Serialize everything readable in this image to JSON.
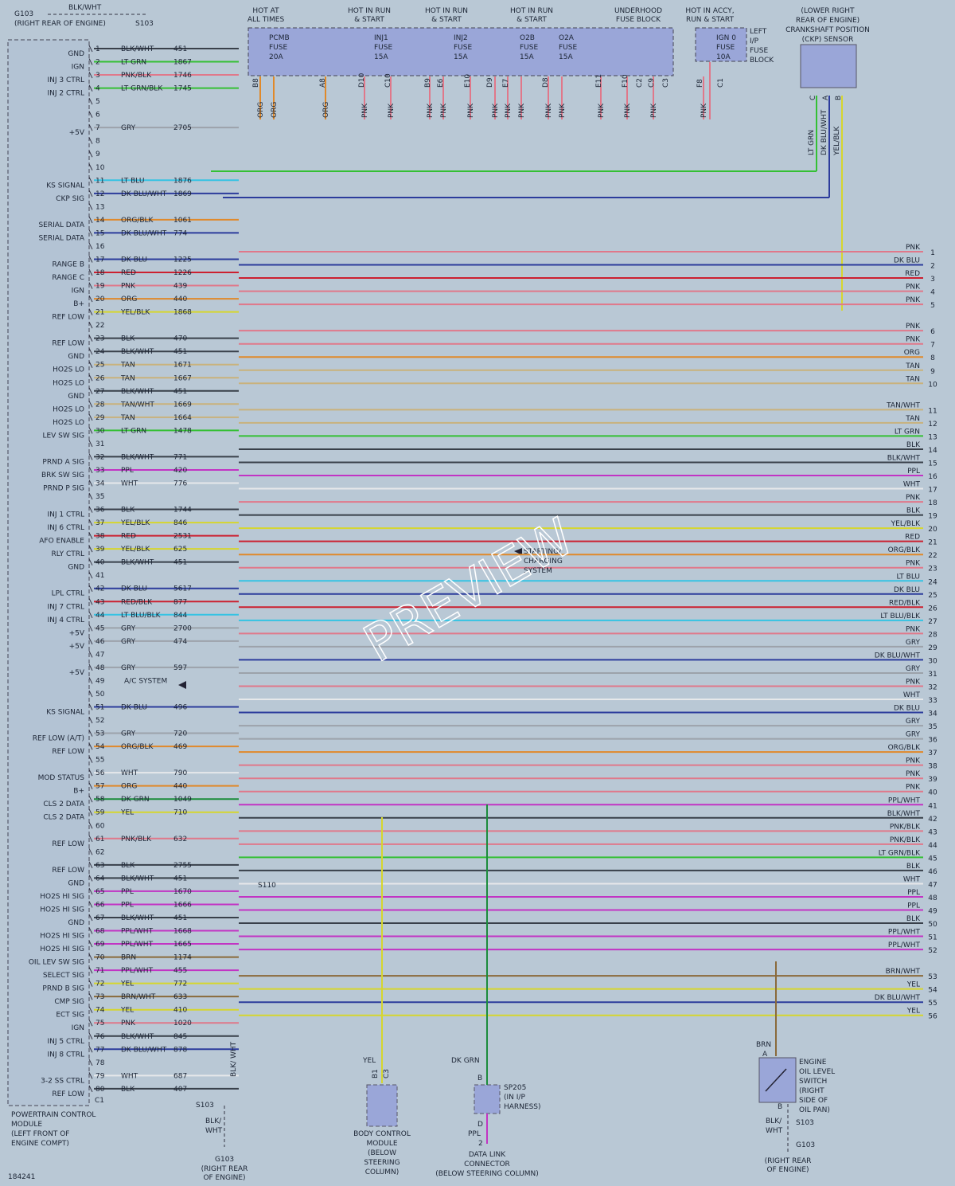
{
  "top_ground": {
    "ground": "G103",
    "note": "(RIGHT REAR OF ENGINE)",
    "wire": "BLK/WHT",
    "splice": "S103"
  },
  "supply": {
    "headers": [
      [
        "HOT AT",
        "ALL TIMES"
      ],
      [
        "HOT IN RUN",
        "& START"
      ],
      [
        "HOT IN RUN",
        "& START"
      ],
      [
        "HOT IN RUN",
        "& START"
      ],
      [
        "UNDERHOOD",
        "FUSE BLOCK"
      ],
      [
        "HOT IN ACCY,",
        "RUN & START"
      ]
    ],
    "fuses": [
      [
        "PCMB",
        "FUSE",
        "20A"
      ],
      [
        "INJ1",
        "FUSE",
        "15A"
      ],
      [
        "INJ2",
        "FUSE",
        "15A"
      ],
      [
        "O2B",
        "FUSE",
        "15A"
      ],
      [
        "O2A",
        "FUSE",
        "15A"
      ],
      [
        "IGN 0",
        "FUSE",
        "10A"
      ]
    ],
    "ip_block": [
      "LEFT",
      "I/P",
      "FUSE",
      "BLOCK"
    ],
    "terminals": [
      "B8",
      "A8",
      "D10",
      "C10",
      "B9",
      "E6",
      "E10",
      "D9",
      "E7",
      "D8",
      "E11",
      "F10",
      "C2",
      "C9",
      "C3",
      "F8",
      "C1"
    ],
    "wire_colors": [
      "ORG",
      "ORG",
      "ORG",
      "PNK",
      "PNK",
      "PNK",
      "PNK",
      "PNK",
      "PNK",
      "PNK",
      "PNK",
      "PNK",
      "PNK",
      "PNK",
      "PNK",
      "PNK",
      "PNK"
    ]
  },
  "ckp": {
    "lines": [
      "(LOWER RIGHT",
      "REAR OF ENGINE)",
      "CRANKSHAFT POSITION",
      "(CKP) SENSOR"
    ],
    "terminals": [
      "C",
      "A",
      "B"
    ],
    "wires": [
      "LT GRN",
      "DK BLU/WHT",
      "YEL/BLK"
    ]
  },
  "pcm": {
    "pins": [
      {
        "num": 1,
        "func": "GND",
        "color": "BLK/WHT",
        "circuit": 451
      },
      {
        "num": 2,
        "func": "IGN",
        "color": "LT GRN",
        "circuit": 1867
      },
      {
        "num": 3,
        "func": "INJ 3 CTRL",
        "color": "PNK/BLK",
        "circuit": 1746
      },
      {
        "num": 4,
        "func": "INJ 2 CTRL",
        "color": "LT GRN/BLK",
        "circuit": 1745
      },
      {
        "num": 5
      },
      {
        "num": 6
      },
      {
        "num": 7,
        "func": "+5V",
        "color": "GRY",
        "circuit": 2705
      },
      {
        "num": 8
      },
      {
        "num": 9
      },
      {
        "num": 10
      },
      {
        "num": 11,
        "func": "KS SIGNAL",
        "color": "LT BLU",
        "circuit": 1876
      },
      {
        "num": 12,
        "func": "CKP SIG",
        "color": "DK BLU/WHT",
        "circuit": 1869
      },
      {
        "num": 13
      },
      {
        "num": 14,
        "func": "SERIAL DATA",
        "color": "ORG/BLK",
        "circuit": 1061
      },
      {
        "num": 15,
        "func": "SERIAL DATA",
        "color": "DK BLU/WHT",
        "circuit": 774
      },
      {
        "num": 16
      },
      {
        "num": 17,
        "func": "RANGE B",
        "color": "DK BLU",
        "circuit": 1225
      },
      {
        "num": 18,
        "func": "RANGE C",
        "color": "RED",
        "circuit": 1226
      },
      {
        "num": 19,
        "func": "IGN",
        "color": "PNK",
        "circuit": 439
      },
      {
        "num": 20,
        "func": "B+",
        "color": "ORG",
        "circuit": 440
      },
      {
        "num": 21,
        "func": "REF LOW",
        "color": "YEL/BLK",
        "circuit": 1868
      },
      {
        "num": 22
      },
      {
        "num": 23,
        "func": "REF LOW",
        "color": "BLK",
        "circuit": 470
      },
      {
        "num": 24,
        "func": "GND",
        "color": "BLK/WHT",
        "circuit": 451
      },
      {
        "num": 25,
        "func": "HO2S LO",
        "color": "TAN",
        "circuit": 1671
      },
      {
        "num": 26,
        "func": "HO2S LO",
        "color": "TAN",
        "circuit": 1667
      },
      {
        "num": 27,
        "func": "GND",
        "color": "BLK/WHT",
        "circuit": 451
      },
      {
        "num": 28,
        "func": "HO2S LO",
        "color": "TAN/WHT",
        "circuit": 1669
      },
      {
        "num": 29,
        "func": "HO2S LO",
        "color": "TAN",
        "circuit": 1664
      },
      {
        "num": 30,
        "func": "LEV SW SIG",
        "color": "LT GRN",
        "circuit": 1478
      },
      {
        "num": 31
      },
      {
        "num": 32,
        "func": "PRND A SIG",
        "color": "BLK/WHT",
        "circuit": 771
      },
      {
        "num": 33,
        "func": "BRK SW SIG",
        "color": "PPL",
        "circuit": 420
      },
      {
        "num": 34,
        "func": "PRND P SIG",
        "color": "WHT",
        "circuit": 776
      },
      {
        "num": 35
      },
      {
        "num": 36,
        "func": "INJ 1 CTRL",
        "color": "BLK",
        "circuit": 1744
      },
      {
        "num": 37,
        "func": "INJ 6 CTRL",
        "color": "YEL/BLK",
        "circuit": 846
      },
      {
        "num": 38,
        "func": "AFO ENABLE",
        "color": "RED",
        "circuit": 2531
      },
      {
        "num": 39,
        "func": "RLY CTRL",
        "color": "YEL/BLK",
        "circuit": 625
      },
      {
        "num": 40,
        "func": "GND",
        "color": "BLK/WHT",
        "circuit": 451
      },
      {
        "num": 41
      },
      {
        "num": 42,
        "func": "LPL CTRL",
        "color": "DK BLU",
        "circuit": 5617
      },
      {
        "num": 43,
        "func": "INJ 7 CTRL",
        "color": "RED/BLK",
        "circuit": 877
      },
      {
        "num": 44,
        "func": "INJ 4 CTRL",
        "color": "LT BLU/BLK",
        "circuit": 844
      },
      {
        "num": 45,
        "func": "+5V",
        "color": "GRY",
        "circuit": 2700
      },
      {
        "num": 46,
        "func": "+5V",
        "color": "GRY",
        "circuit": 474
      },
      {
        "num": 47
      },
      {
        "num": 48,
        "func": "+5V",
        "color": "GRY",
        "circuit": 597
      },
      {
        "num": 49,
        "color": "A/C SYSTEM"
      },
      {
        "num": 50
      },
      {
        "num": 51,
        "func": "KS SIGNAL",
        "color": "DK BLU",
        "circuit": 496
      },
      {
        "num": 52
      },
      {
        "num": 53,
        "func": "REF LOW (A/T)",
        "color": "GRY",
        "circuit": 720
      },
      {
        "num": 54,
        "func": "REF LOW",
        "color": "ORG/BLK",
        "circuit": 469
      },
      {
        "num": 55
      },
      {
        "num": 56,
        "func": "MOD STATUS",
        "color": "WHT",
        "circuit": 790
      },
      {
        "num": 57,
        "func": "B+",
        "color": "ORG",
        "circuit": 440
      },
      {
        "num": 58,
        "func": "CLS 2 DATA",
        "color": "DK GRN",
        "circuit": 1049
      },
      {
        "num": 59,
        "func": "CLS 2 DATA",
        "color": "YEL",
        "circuit": 710
      },
      {
        "num": 60
      },
      {
        "num": 61,
        "func": "REF LOW",
        "color": "PNK/BLK",
        "circuit": 632
      },
      {
        "num": 62
      },
      {
        "num": 63,
        "func": "REF LOW",
        "color": "BLK",
        "circuit": 2755
      },
      {
        "num": 64,
        "func": "GND",
        "color": "BLK/WHT",
        "circuit": 451
      },
      {
        "num": 65,
        "func": "HO2S HI SIG",
        "color": "PPL",
        "circuit": 1670
      },
      {
        "num": 66,
        "func": "HO2S HI SIG",
        "color": "PPL",
        "circuit": 1666
      },
      {
        "num": 67,
        "func": "GND",
        "color": "BLK/WHT",
        "circuit": 451
      },
      {
        "num": 68,
        "func": "HO2S HI SIG",
        "color": "PPL/WHT",
        "circuit": 1668
      },
      {
        "num": 69,
        "func": "HO2S HI SIG",
        "color": "PPL/WHT",
        "circuit": 1665
      },
      {
        "num": 70,
        "func": "OIL LEV SW SIG",
        "color": "BRN",
        "circuit": 1174
      },
      {
        "num": 71,
        "func": "SELECT SIG",
        "color": "PPL/WHT",
        "circuit": 455
      },
      {
        "num": 72,
        "func": "PRND B SIG",
        "color": "YEL",
        "circuit": 772
      },
      {
        "num": 73,
        "func": "CMP SIG",
        "color": "BRN/WHT",
        "circuit": 633
      },
      {
        "num": 74,
        "func": "ECT SIG",
        "color": "YEL",
        "circuit": 410
      },
      {
        "num": 75,
        "func": "IGN",
        "color": "PNK",
        "circuit": 1020
      },
      {
        "num": 76,
        "func": "INJ 5 CTRL",
        "color": "BLK/WHT",
        "circuit": 845
      },
      {
        "num": 77,
        "func": "INJ 8 CTRL",
        "color": "DK BLU/WHT",
        "circuit": 878
      },
      {
        "num": 78
      },
      {
        "num": 79,
        "func": "3-2 SS CTRL",
        "color": "WHT",
        "circuit": 687
      },
      {
        "num": 80,
        "func": "REF LOW",
        "color": "BLK",
        "circuit": 407
      }
    ],
    "connector": "C1",
    "lines": [
      "POWERTRAIN CONTROL",
      "MODULE",
      "(LEFT FRONT OF",
      "ENGINE COMPT)"
    ]
  },
  "right_terminals": [
    {
      "num": 1,
      "color": "PNK"
    },
    {
      "num": 2,
      "color": "DK BLU"
    },
    {
      "num": 3,
      "color": "RED"
    },
    {
      "num": 4,
      "color": "PNK"
    },
    {
      "num": 5,
      "color": "PNK"
    },
    {
      "num": 6,
      "color": "PNK"
    },
    {
      "num": 7,
      "color": "PNK"
    },
    {
      "num": 8,
      "color": "ORG"
    },
    {
      "num": 9,
      "color": "TAN"
    },
    {
      "num": 10,
      "color": "TAN"
    },
    {
      "num": 11,
      "color": "TAN/WHT"
    },
    {
      "num": 12,
      "color": "TAN"
    },
    {
      "num": 13,
      "color": "LT GRN"
    },
    {
      "num": 14,
      "color": "BLK"
    },
    {
      "num": 15,
      "color": "BLK/WHT"
    },
    {
      "num": 16,
      "color": "PPL"
    },
    {
      "num": 17,
      "color": "WHT"
    },
    {
      "num": 18,
      "color": "PNK"
    },
    {
      "num": 19,
      "color": "BLK"
    },
    {
      "num": 20,
      "color": "YEL/BLK"
    },
    {
      "num": 21,
      "color": "RED"
    },
    {
      "num": 22,
      "color": "ORG/BLK"
    },
    {
      "num": 23,
      "color": "PNK"
    },
    {
      "num": 24,
      "color": "LT BLU"
    },
    {
      "num": 25,
      "color": "DK BLU"
    },
    {
      "num": 26,
      "color": "RED/BLK"
    },
    {
      "num": 27,
      "color": "LT BLU/BLK"
    },
    {
      "num": 28,
      "color": "PNK"
    },
    {
      "num": 29,
      "color": "GRY"
    },
    {
      "num": 30,
      "color": "DK BLU/WHT"
    },
    {
      "num": 31,
      "color": "GRY"
    },
    {
      "num": 32,
      "color": "PNK"
    },
    {
      "num": 33,
      "color": "WHT"
    },
    {
      "num": 34,
      "color": "DK BLU"
    },
    {
      "num": 35,
      "color": "GRY"
    },
    {
      "num": 36,
      "color": "GRY"
    },
    {
      "num": 37,
      "color": "ORG/BLK"
    },
    {
      "num": 38,
      "color": "PNK"
    },
    {
      "num": 39,
      "color": "PNK"
    },
    {
      "num": 40,
      "color": "PNK"
    },
    {
      "num": 41,
      "color": "PPL/WHT"
    },
    {
      "num": 42,
      "color": "BLK/WHT"
    },
    {
      "num": 43,
      "color": "PNK/BLK"
    },
    {
      "num": 44,
      "color": "PNK/BLK"
    },
    {
      "num": 45,
      "color": "LT GRN/BLK"
    },
    {
      "num": 46,
      "color": "BLK"
    },
    {
      "num": 47,
      "color": "WHT"
    },
    {
      "num": 48,
      "color": "PPL"
    },
    {
      "num": 49,
      "color": "PPL"
    },
    {
      "num": 50,
      "color": "BLK"
    },
    {
      "num": 51,
      "color": "PPL/WHT"
    },
    {
      "num": 52,
      "color": "PPL/WHT"
    },
    {
      "num": 53,
      "color": "BRN/WHT"
    },
    {
      "num": 54,
      "color": "YEL"
    },
    {
      "num": 55,
      "color": "DK BLU/WHT"
    },
    {
      "num": 56,
      "color": "YEL"
    }
  ],
  "starting": [
    "STARTING/",
    "CHARGING",
    "SYSTEM"
  ],
  "splice_s110": "S110",
  "bottom_ground": {
    "splice": "S103",
    "wire": [
      "BLK/",
      "WHT"
    ],
    "wire_v": "BLK/ WHT",
    "ground": "G103",
    "note": [
      "(RIGHT REAR",
      "OF ENGINE)"
    ]
  },
  "bcm": {
    "wire": "YEL",
    "terminals": [
      "B1",
      "C3"
    ],
    "lines": [
      "BODY CONTROL",
      "MODULE",
      "(BELOW",
      "STEERING",
      "COLUMN)"
    ]
  },
  "dlc": {
    "wire_in": "DK GRN",
    "term_in": "B",
    "splice": [
      "SP205",
      "(IN I/P",
      "HARNESS)"
    ],
    "term_out": "D",
    "wire_out": "PPL",
    "pin": "2",
    "lines": [
      "DATA LINK",
      "CONNECTOR",
      "(BELOW STEERING COLUMN)"
    ]
  },
  "oil_switch": {
    "wire": "BRN",
    "term_a": "A",
    "term_b": "B",
    "lines": [
      "ENGINE",
      "OIL LEVEL",
      "SWITCH",
      "(RIGHT",
      "SIDE OF",
      "OIL PAN)"
    ],
    "ground_wire": [
      "BLK/",
      "WHT"
    ],
    "splice": "S103",
    "ground": "G103",
    "note": [
      "(RIGHT REAR",
      "OF ENGINE)"
    ]
  },
  "figure_id": "184241",
  "watermark": "PREVIEW"
}
